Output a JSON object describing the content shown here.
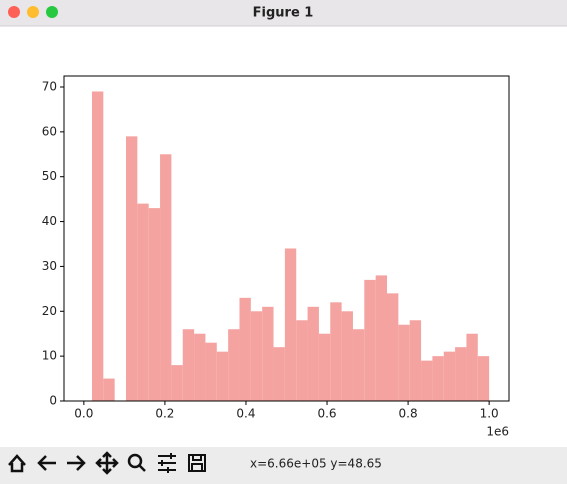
{
  "window": {
    "title": "Figure 1",
    "status": "x=6.66e+05 y=48.65"
  },
  "chart_data": {
    "type": "histogram",
    "bins": [
      20000,
      48000,
      76000,
      104000,
      132000,
      160000,
      188000,
      216000,
      244000,
      272000,
      300000,
      328000,
      356000,
      384000,
      412000,
      440000,
      468000,
      496000,
      524000,
      552000,
      580000,
      608000,
      636000,
      664000,
      692000,
      720000,
      748000,
      776000,
      804000,
      832000,
      860000,
      888000,
      916000,
      944000,
      972000,
      1000000
    ],
    "counts": [
      69,
      5,
      0,
      59,
      44,
      43,
      55,
      8,
      16,
      15,
      13,
      11,
      16,
      23,
      20,
      21,
      12,
      34,
      18,
      21,
      15,
      22,
      20,
      16,
      27,
      28,
      24,
      17,
      18,
      9,
      10,
      11,
      12,
      15,
      10
    ],
    "color": "#f4a3a0",
    "xlim": [
      -49000,
      1049000
    ],
    "ylim": [
      0,
      72.45
    ],
    "xticks": [
      {
        "value": 0,
        "label": "0.0"
      },
      {
        "value": 200000,
        "label": "0.2"
      },
      {
        "value": 400000,
        "label": "0.4"
      },
      {
        "value": 600000,
        "label": "0.6"
      },
      {
        "value": 800000,
        "label": "0.8"
      },
      {
        "value": 1000000,
        "label": "1.0"
      }
    ],
    "x_offset_label": "1e6",
    "yticks": [
      0,
      10,
      20,
      30,
      40,
      50,
      60,
      70
    ]
  }
}
